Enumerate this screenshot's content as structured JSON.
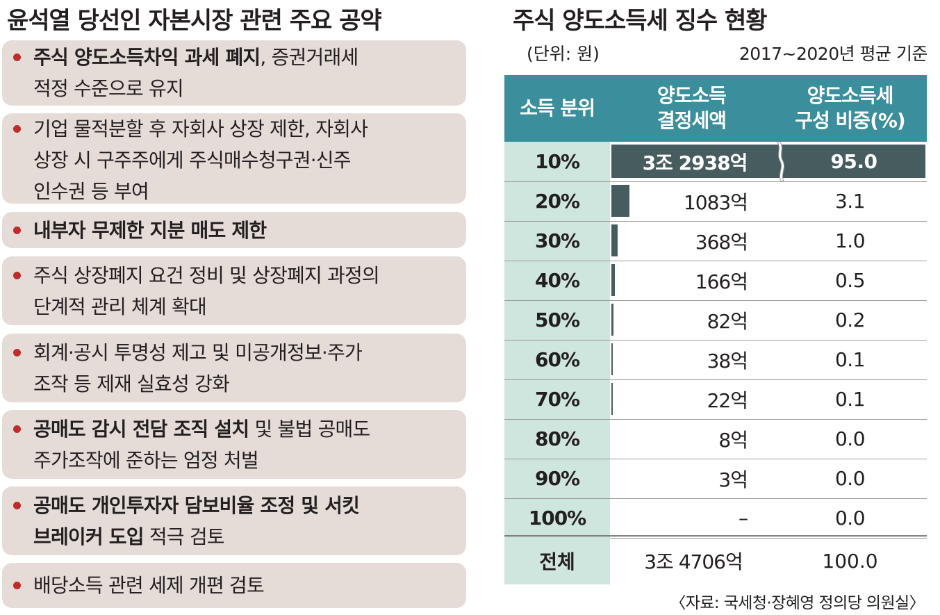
{
  "left": {
    "title": "윤석열 당선인 자본시장 관련 주요 공약",
    "pledges": [
      {
        "lines": [
          {
            "bold": "주식 양도소득차익 과세 폐지",
            "rest": ", 증권거래세"
          },
          {
            "bold": "",
            "rest": "적정 수준으로 유지"
          }
        ]
      },
      {
        "lines": [
          {
            "bold": "",
            "rest": "기업 물적분할 후 자회사 상장 제한, 자회사"
          },
          {
            "bold": "",
            "rest": "상장 시 구주주에게 주식매수청구권·신주"
          },
          {
            "bold": "",
            "rest": "인수권 등 부여"
          }
        ]
      },
      {
        "lines": [
          {
            "bold": "내부자 무제한 지분 매도 제한",
            "rest": ""
          }
        ]
      },
      {
        "lines": [
          {
            "bold": "",
            "rest": "주식 상장폐지 요건 정비 및 상장폐지 과정의"
          },
          {
            "bold": "",
            "rest": "단계적 관리 체계 확대"
          }
        ]
      },
      {
        "lines": [
          {
            "bold": "",
            "rest": "회계·공시 투명성 제고 및 미공개정보·주가"
          },
          {
            "bold": "",
            "rest": "조작 등 제재 실효성 강화"
          }
        ]
      },
      {
        "lines": [
          {
            "bold": "공매도 감시 전담 조직 설치",
            "rest": " 및 불법 공매도"
          },
          {
            "bold": "",
            "rest": "주가조작에 준하는 엄정 처벌"
          }
        ]
      },
      {
        "lines": [
          {
            "bold": "공매도 개인투자자 담보비율 조정 및 서킷",
            "rest": ""
          },
          {
            "bold": "브레이커 도입",
            "rest": " 적극 검토"
          }
        ]
      },
      {
        "lines": [
          {
            "bold": "",
            "rest": "배당소득 관련 세제 개편 검토"
          }
        ]
      }
    ]
  },
  "right": {
    "title": "주식 양도소득세 징수 현황",
    "unit": "(단위: 원)",
    "period": "2017~2020년 평균 기준",
    "headers": {
      "rank": "소득 분위",
      "amount_1": "양도소득",
      "amount_2": "결정세액",
      "share_1": "양도소득세",
      "share_2": "구성 비중(%)"
    },
    "rows": [
      {
        "rank": "10%",
        "amount": "3조 2938억",
        "share": "95.0"
      },
      {
        "rank": "20%",
        "amount": "1083억",
        "share": "3.1"
      },
      {
        "rank": "30%",
        "amount": "368억",
        "share": "1.0"
      },
      {
        "rank": "40%",
        "amount": "166억",
        "share": "0.5"
      },
      {
        "rank": "50%",
        "amount": "82억",
        "share": "0.2"
      },
      {
        "rank": "60%",
        "amount": "38억",
        "share": "0.1"
      },
      {
        "rank": "70%",
        "amount": "22억",
        "share": "0.1"
      },
      {
        "rank": "80%",
        "amount": "8억",
        "share": "0.0"
      },
      {
        "rank": "90%",
        "amount": "3억",
        "share": "0.0"
      },
      {
        "rank": "100%",
        "amount": "–",
        "share": "0.0"
      }
    ],
    "total": {
      "rank": "전체",
      "amount": "3조 4706억",
      "share": "100.0"
    },
    "source": "〈자료: 국세청·장혜영 정의당 의원실〉"
  },
  "colors": {
    "header_bg": "#3b8e9c",
    "rank_bg": "#cfe6de",
    "bar": "#465c5f",
    "pledge_bg": "#e5dcd8",
    "bullet": "#c02b2c"
  }
}
